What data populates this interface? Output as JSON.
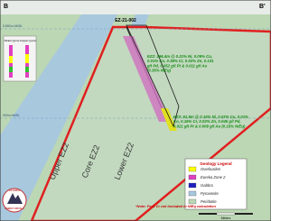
{
  "section": {
    "left_label": "B",
    "right_label": "B'",
    "drillhole": "EZ-21-002"
  },
  "elevations": [
    "5,550m AMSL",
    "900m AMSL"
  ],
  "log_legend": [
    "Nickel (ppm)",
    "Copper (ppm)"
  ],
  "zones": [
    "Upper EZ2",
    "Core EZ2",
    "Lower EZ2"
  ],
  "intercepts": [
    {
      "lines": [
        "EZ2: 296.4m @ 0.21% Ni, 0.09% Cu,",
        "0.01% Co, 0.38% Cr, 0.02% Zn, 0.131",
        "g/t Pd, 0.052 g/t Pt & 0.011 g/t Au",
        "(0.35% NiEq)"
      ]
    },
    {
      "lines": [
        "EZ3: 61.8m @ 0.15% Ni, 0.03% Cu, 0.01%",
        "Co, 0.16% Cr, 0.02% Zn, 0.045 g/t Pd,",
        "0.021 g/t Pt & 0.009 g/t Au (0.15% NiEq)"
      ]
    }
  ],
  "legend": {
    "title": "Geology Legend",
    "items": [
      "Overburden",
      "Eureka Zone 2",
      "Gabbro",
      "Pyroxenite",
      "Peridotite"
    ]
  },
  "note": "*Note: Fe & Cr not included in NiEq calculation",
  "logo": [
    "ALASKA",
    "ENERGY METALS"
  ],
  "scale": "Meters"
}
